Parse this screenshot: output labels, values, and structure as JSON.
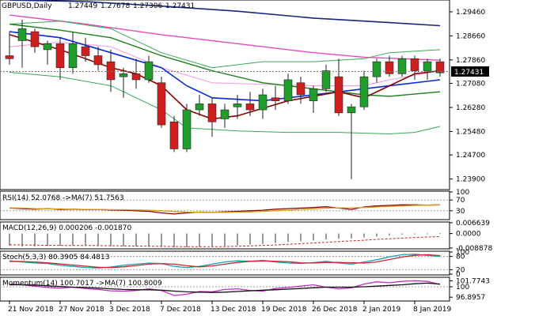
{
  "chart_data": [
    {
      "type": "candlestick",
      "title": "GBPUSD,Daily",
      "ohlc_readout": [
        "1.27449",
        "1.27678",
        "1.27306",
        "1.27431"
      ],
      "current_price_label": "1.27431",
      "ylim": [
        1.236,
        1.298
      ],
      "y_ticks": [
        "1.29460",
        "1.28660",
        "1.27860",
        "1.27080",
        "1.26280",
        "1.25480",
        "1.24700",
        "1.23900"
      ],
      "x_ticks": [
        {
          "label": "21 Nov 2018",
          "index": 0
        },
        {
          "label": "27 Nov 2018",
          "index": 4
        },
        {
          "label": "3 Dec 2018",
          "index": 8
        },
        {
          "label": "7 Dec 2018",
          "index": 12
        },
        {
          "label": "13 Dec 2018",
          "index": 16
        },
        {
          "label": "19 Dec 2018",
          "index": 20
        },
        {
          "label": "26 Dec 2018",
          "index": 24
        },
        {
          "label": "2 Jan 2019",
          "index": 28
        },
        {
          "label": "8 Jan 2019",
          "index": 32
        }
      ],
      "candles": [
        {
          "o": 1.28,
          "h": 1.288,
          "l": 1.277,
          "c": 1.279
        },
        {
          "o": 1.285,
          "h": 1.292,
          "l": 1.276,
          "c": 1.289
        },
        {
          "o": 1.288,
          "h": 1.289,
          "l": 1.281,
          "c": 1.283
        },
        {
          "o": 1.282,
          "h": 1.285,
          "l": 1.277,
          "c": 1.284
        },
        {
          "o": 1.284,
          "h": 1.286,
          "l": 1.272,
          "c": 1.276
        },
        {
          "o": 1.276,
          "h": 1.288,
          "l": 1.274,
          "c": 1.284
        },
        {
          "o": 1.283,
          "h": 1.286,
          "l": 1.278,
          "c": 1.28
        },
        {
          "o": 1.28,
          "h": 1.283,
          "l": 1.275,
          "c": 1.277
        },
        {
          "o": 1.278,
          "h": 1.282,
          "l": 1.268,
          "c": 1.272
        },
        {
          "o": 1.273,
          "h": 1.276,
          "l": 1.266,
          "c": 1.274
        },
        {
          "o": 1.274,
          "h": 1.279,
          "l": 1.269,
          "c": 1.272
        },
        {
          "o": 1.272,
          "h": 1.28,
          "l": 1.271,
          "c": 1.278
        },
        {
          "o": 1.271,
          "h": 1.273,
          "l": 1.256,
          "c": 1.257
        },
        {
          "o": 1.258,
          "h": 1.26,
          "l": 1.248,
          "c": 1.249
        },
        {
          "o": 1.249,
          "h": 1.264,
          "l": 1.248,
          "c": 1.262
        },
        {
          "o": 1.262,
          "h": 1.267,
          "l": 1.26,
          "c": 1.264
        },
        {
          "o": 1.264,
          "h": 1.266,
          "l": 1.253,
          "c": 1.258
        },
        {
          "o": 1.259,
          "h": 1.264,
          "l": 1.256,
          "c": 1.262
        },
        {
          "o": 1.263,
          "h": 1.267,
          "l": 1.259,
          "c": 1.264
        },
        {
          "o": 1.264,
          "h": 1.268,
          "l": 1.26,
          "c": 1.262
        },
        {
          "o": 1.262,
          "h": 1.269,
          "l": 1.259,
          "c": 1.267
        },
        {
          "o": 1.266,
          "h": 1.27,
          "l": 1.262,
          "c": 1.265
        },
        {
          "o": 1.265,
          "h": 1.274,
          "l": 1.264,
          "c": 1.272
        },
        {
          "o": 1.271,
          "h": 1.273,
          "l": 1.264,
          "c": 1.267
        },
        {
          "o": 1.265,
          "h": 1.27,
          "l": 1.261,
          "c": 1.269
        },
        {
          "o": 1.269,
          "h": 1.277,
          "l": 1.268,
          "c": 1.275
        },
        {
          "o": 1.273,
          "h": 1.279,
          "l": 1.26,
          "c": 1.261
        },
        {
          "o": 1.261,
          "h": 1.264,
          "l": 1.239,
          "c": 1.263
        },
        {
          "o": 1.263,
          "h": 1.275,
          "l": 1.262,
          "c": 1.273
        },
        {
          "o": 1.273,
          "h": 1.279,
          "l": 1.271,
          "c": 1.278
        },
        {
          "o": 1.278,
          "h": 1.28,
          "l": 1.273,
          "c": 1.274
        },
        {
          "o": 1.274,
          "h": 1.28,
          "l": 1.273,
          "c": 1.279
        },
        {
          "o": 1.279,
          "h": 1.28,
          "l": 1.272,
          "c": 1.275
        },
        {
          "o": 1.275,
          "h": 1.279,
          "l": 1.272,
          "c": 1.278
        },
        {
          "o": 1.278,
          "h": 1.279,
          "l": 1.273,
          "c": 1.2743
        }
      ],
      "overlays": [
        {
          "color": "#1a237e",
          "width": 1.6,
          "points": [
            [
              0,
              1.2985
            ],
            [
              6,
              1.298
            ],
            [
              12,
              1.2965
            ],
            [
              18,
              1.2948
            ],
            [
              24,
              1.2925
            ],
            [
              30,
              1.291
            ],
            [
              34,
              1.29
            ]
          ]
        },
        {
          "color": "#e64ab6",
          "width": 1.4,
          "points": [
            [
              0,
              1.2935
            ],
            [
              6,
              1.2905
            ],
            [
              12,
              1.287
            ],
            [
              18,
              1.284
            ],
            [
              24,
              1.281
            ],
            [
              28,
              1.2795
            ],
            [
              34,
              1.2785
            ]
          ]
        },
        {
          "color": "#f2a7e0",
          "width": 1.2,
          "points": [
            [
              0,
              1.283
            ],
            [
              4,
              1.2845
            ],
            [
              8,
              1.283
            ],
            [
              12,
              1.276
            ],
            [
              16,
              1.271
            ],
            [
              20,
              1.2705
            ],
            [
              24,
              1.27
            ],
            [
              28,
              1.27
            ],
            [
              30,
              1.272
            ],
            [
              34,
              1.275
            ]
          ]
        },
        {
          "color": "#34a853",
          "width": 1.0,
          "points": [
            [
              0,
              1.2905
            ],
            [
              4,
              1.2915
            ],
            [
              8,
              1.289
            ],
            [
              12,
              1.281
            ],
            [
              16,
              1.276
            ],
            [
              20,
              1.278
            ],
            [
              24,
              1.278
            ],
            [
              28,
              1.279
            ],
            [
              30,
              1.281
            ],
            [
              34,
              1.282
            ]
          ]
        },
        {
          "color": "#34a853",
          "width": 1.0,
          "points": [
            [
              0,
              1.2745
            ],
            [
              4,
              1.273
            ],
            [
              8,
              1.27
            ],
            [
              12,
              1.262
            ],
            [
              14,
              1.256
            ],
            [
              18,
              1.255
            ],
            [
              22,
              1.2545
            ],
            [
              26,
              1.2545
            ],
            [
              30,
              1.254
            ],
            [
              32,
              1.2545
            ],
            [
              34,
              1.2565
            ]
          ]
        },
        {
          "color": "#1a7f1a",
          "width": 1.4,
          "points": [
            [
              0,
              1.2905
            ],
            [
              4,
              1.2885
            ],
            [
              8,
              1.286
            ],
            [
              12,
              1.28
            ],
            [
              16,
              1.275
            ],
            [
              20,
              1.271
            ],
            [
              24,
              1.269
            ],
            [
              28,
              1.267
            ],
            [
              30,
              1.2665
            ],
            [
              34,
              1.268
            ]
          ]
        },
        {
          "color": "#0a2ad6",
          "width": 1.6,
          "points": [
            [
              0,
              1.288
            ],
            [
              4,
              1.286
            ],
            [
              8,
              1.281
            ],
            [
              12,
              1.276
            ],
            [
              14,
              1.27
            ],
            [
              16,
              1.266
            ],
            [
              20,
              1.265
            ],
            [
              24,
              1.267
            ],
            [
              28,
              1.269
            ],
            [
              30,
              1.27
            ],
            [
              34,
              1.272
            ]
          ]
        },
        {
          "color": "#8b0000",
          "width": 1.6,
          "points": [
            [
              0,
              1.287
            ],
            [
              4,
              1.282
            ],
            [
              8,
              1.276
            ],
            [
              10,
              1.274
            ],
            [
              12,
              1.27
            ],
            [
              14,
              1.262
            ],
            [
              16,
              1.259
            ],
            [
              18,
              1.26
            ],
            [
              22,
              1.265
            ],
            [
              26,
              1.268
            ],
            [
              28,
              1.266
            ],
            [
              30,
              1.27
            ],
            [
              32,
              1.274
            ],
            [
              34,
              1.275
            ]
          ]
        }
      ]
    },
    {
      "type": "line",
      "title": "RSI(14) 52.0768 ->MA(7) 51.7563",
      "ylim": [
        0,
        100
      ],
      "y_ticks": [
        "100",
        "70",
        "30"
      ],
      "levels": [
        70,
        30
      ],
      "series": [
        {
          "name": "RSI(14)",
          "color": "#8b0000",
          "values": [
            40,
            38,
            36,
            38,
            35,
            36,
            34,
            35,
            33,
            32,
            30,
            28,
            22,
            18,
            22,
            25,
            24,
            26,
            28,
            30,
            32,
            36,
            38,
            40,
            42,
            45,
            40,
            35,
            44,
            48,
            50,
            52,
            52,
            51,
            52
          ]
        },
        {
          "name": "MA(7)",
          "color": "#d4a017",
          "values": [
            41,
            40,
            38,
            37,
            37,
            36,
            35,
            35,
            34,
            34,
            33,
            32,
            30,
            27,
            25,
            24,
            24,
            24,
            25,
            26,
            28,
            30,
            32,
            35,
            37,
            40,
            41,
            41,
            42,
            44,
            46,
            48,
            50,
            51,
            52
          ]
        }
      ]
    },
    {
      "type": "bar",
      "title": "MACD(12,26,9) 0.000206 -0.001870",
      "y_ticks": [
        "0.0000",
        "0.006639",
        "-0.008878"
      ],
      "ylim": [
        -0.0089,
        0.0066
      ],
      "values": [
        -0.0075,
        -0.008,
        -0.0078,
        -0.0076,
        -0.0075,
        -0.0073,
        -0.0074,
        -0.0076,
        -0.0078,
        -0.0079,
        -0.008,
        -0.0081,
        -0.0083,
        -0.0085,
        -0.0084,
        -0.0082,
        -0.0079,
        -0.0076,
        -0.0072,
        -0.0068,
        -0.0064,
        -0.0058,
        -0.0052,
        -0.0047,
        -0.0042,
        -0.0036,
        -0.0032,
        -0.003,
        -0.0024,
        -0.0018,
        -0.0012,
        -0.0007,
        -0.0003,
        0.0001,
        0.0002
      ],
      "signal": {
        "color": "#c62828",
        "values": [
          -0.0068,
          -0.007,
          -0.0071,
          -0.0072,
          -0.0073,
          -0.0073,
          -0.0073,
          -0.0074,
          -0.0075,
          -0.0076,
          -0.0077,
          -0.0078,
          -0.0079,
          -0.008,
          -0.0081,
          -0.0081,
          -0.0081,
          -0.008,
          -0.0078,
          -0.0076,
          -0.0073,
          -0.007,
          -0.0066,
          -0.0062,
          -0.0058,
          -0.0054,
          -0.0049,
          -0.0045,
          -0.0041,
          -0.0036,
          -0.0032,
          -0.0028,
          -0.0024,
          -0.0021,
          -0.0019
        ]
      }
    },
    {
      "type": "line",
      "title": "Stoch(5,3,3) 80.3905 84.4813",
      "ylim": [
        0,
        100
      ],
      "y_ticks": [
        "100",
        "80",
        "20",
        "0"
      ],
      "levels": [
        80,
        20
      ],
      "series": [
        {
          "name": "%K",
          "color": "#17a2b8",
          "values": [
            60,
            55,
            50,
            48,
            40,
            35,
            30,
            28,
            32,
            40,
            45,
            50,
            48,
            35,
            30,
            35,
            45,
            55,
            60,
            58,
            62,
            55,
            50,
            48,
            52,
            58,
            50,
            45,
            55,
            65,
            78,
            88,
            90,
            85,
            80
          ]
        },
        {
          "name": "%D",
          "color": "#c62828",
          "values": [
            58,
            57,
            55,
            51,
            46,
            41,
            36,
            31,
            30,
            33,
            39,
            45,
            48,
            45,
            38,
            33,
            37,
            45,
            53,
            58,
            60,
            58,
            56,
            51,
            50,
            53,
            53,
            51,
            50,
            55,
            66,
            77,
            85,
            88,
            84
          ]
        }
      ]
    },
    {
      "type": "line",
      "title": "Momentum(14) 100.7017 ->MA(7) 100.8009",
      "ylim": [
        96,
        102.6
      ],
      "y_ticks": [
        "101.7743",
        "100",
        "96.8957"
      ],
      "levels": [
        100
      ],
      "series": [
        {
          "name": "Momentum(14)",
          "color": "#c02bbf",
          "values": [
            100.8,
            100.6,
            100.2,
            99.8,
            99.6,
            99.9,
            99.5,
            99.2,
            98.8,
            98.7,
            98.9,
            99.4,
            98.9,
            97.4,
            97.8,
            98.6,
            98.5,
            99.2,
            99.4,
            98.9,
            98.7,
            99.5,
            99.8,
            100.2,
            100.6,
            99.9,
            99.4,
            99.7,
            100.8,
            101.5,
            101.2,
            101.6,
            101.8,
            101.6,
            100.7
          ]
        },
        {
          "name": "MA(7)",
          "color": "#111111",
          "values": [
            100.6,
            100.6,
            100.5,
            100.3,
            100.1,
            99.9,
            99.8,
            99.6,
            99.4,
            99.2,
            99.1,
            99.1,
            99.0,
            98.7,
            98.5,
            98.4,
            98.3,
            98.4,
            98.6,
            98.8,
            99.0,
            99.1,
            99.3,
            99.5,
            99.7,
            99.9,
            99.9,
            99.9,
            100.0,
            100.2,
            100.4,
            100.6,
            100.9,
            101.1,
            100.8
          ]
        }
      ]
    }
  ]
}
